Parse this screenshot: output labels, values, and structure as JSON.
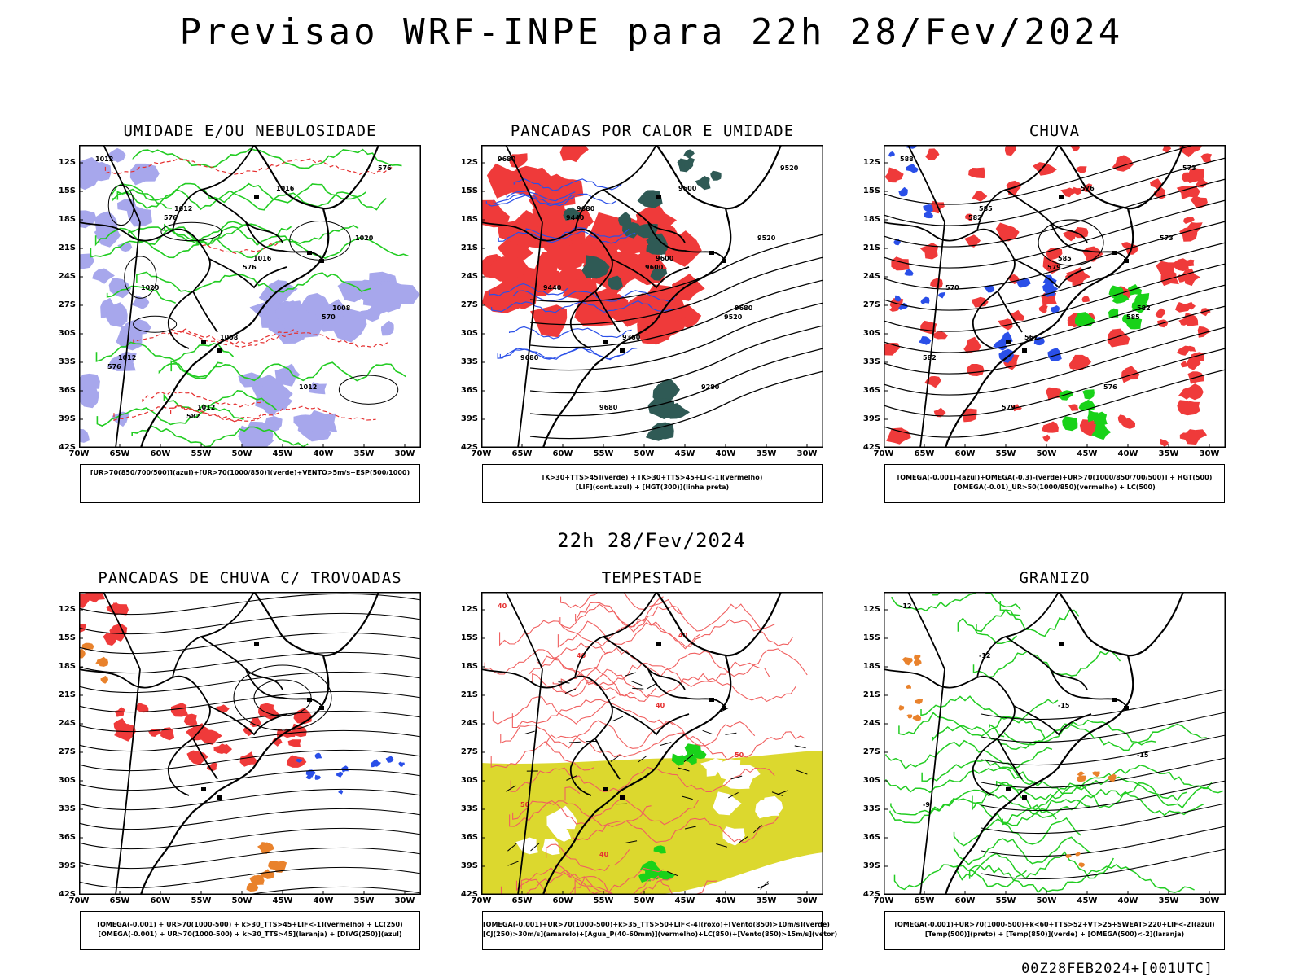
{
  "title": "Previsao WRF-INPE  para 22h 28/Fev/2024",
  "subtitle": "22h 28/Fev/2024",
  "footer": "00Z28FEB2024+[001UTC]",
  "axes": {
    "lat_labels": [
      "12S",
      "15S",
      "18S",
      "21S",
      "24S",
      "27S",
      "30S",
      "33S",
      "36S",
      "39S",
      "42S"
    ],
    "lon_labels": [
      "70W",
      "65W",
      "60W",
      "55W",
      "50W",
      "45W",
      "40W",
      "35W",
      "30W"
    ]
  },
  "panels": [
    {
      "title": "UMIDADE E/OU NEBULOSIDADE",
      "legend": [
        "[UR>70(850/700/500)](azul)+[UR>70(1000/850)](verde)+VENTO>5m/s+ESP(500/1000)"
      ],
      "contour_labels": [
        "1012",
        "1012",
        "1016",
        "1008",
        "1012",
        "1012",
        "1016",
        "1020",
        "1020",
        "1008",
        "1012",
        "576",
        "576",
        "576",
        "570",
        "576",
        "582"
      ]
    },
    {
      "title": "PANCADAS POR CALOR E UMIDADE",
      "legend": [
        "[K>30+TTS>45](verde)  +  [K>30+TTS>45+LI<-1](vermelho)",
        "[LIF](cont.azul)  +  [HGT(300)](linha preta)"
      ],
      "contour_labels": [
        "9680",
        "9680",
        "9600",
        "9680",
        "9680",
        "9680",
        "9600",
        "9520",
        "9440",
        "9360",
        "9280",
        "9520",
        "9440",
        "9600",
        "9520"
      ]
    },
    {
      "title": "CHUVA",
      "legend": [
        "[OMEGA(-0.001)-(azul)+OMEGA(-0.3)-(verde)+UR>70(1000/850/700/500)]  +  HGT(500)",
        "[OMEGA(-0.01)_UR>50(1000/850)(vermelho) + LC(500)"
      ],
      "contour_labels": [
        "588",
        "585",
        "585",
        "582",
        "582",
        "579",
        "576",
        "573",
        "570",
        "567",
        "576",
        "573",
        "582",
        "579",
        "585"
      ]
    },
    {
      "title": "PANCADAS DE CHUVA C/ TROVOADAS",
      "legend": [
        "[OMEGA(-0.001) + UR>70(1000-500) + k>30_TTS>45+LIF<-1](vermelho) + LC(250)",
        "[OMEGA(-0.001) + UR>70(1000-500) + k>30_TTS>45](laranja) + [DIVG(250)](azul)"
      ],
      "contour_labels": []
    },
    {
      "title": "TEMPESTADE",
      "legend": [
        "[OMEGA(-0.001)+UR>70(1000-500)+k>35_TTS>50+LIF<-4](roxo)+[Vento(850)>10m/s](verde)",
        "[CJ(250)>30m/s](amarelo)+[Agua_P(40-60mm)](vermelho)+LC(850)+[Vento(850)>15m/s](vetor)"
      ],
      "contour_labels": [
        "40",
        "40",
        "40",
        "50",
        "50",
        "40",
        "40"
      ]
    },
    {
      "title": "GRANIZO",
      "legend": [
        "[OMEGA(-0.001)+UR>70(1000-500)+k<60+TTS>52+VT>25+SWEAT>220+LIF<-2](azul)",
        "[Temp(500)](preto) + [Temp(850)](verde) + [OMEGA(500)<-2](laranja)"
      ],
      "contour_labels": [
        "-12",
        "-12",
        "-15",
        "-15",
        "-9"
      ]
    }
  ],
  "colors": {
    "blue_fill": "#a7a7ec",
    "green_line": "#22cc22",
    "red_fill": "#ef3a3a",
    "dark_green": "#2f5a55",
    "blue_line": "#2a4fe8",
    "orange": "#e9822c",
    "yellow": "#dcd82e",
    "green_fill": "#19d219",
    "salmon": "#f06060"
  }
}
